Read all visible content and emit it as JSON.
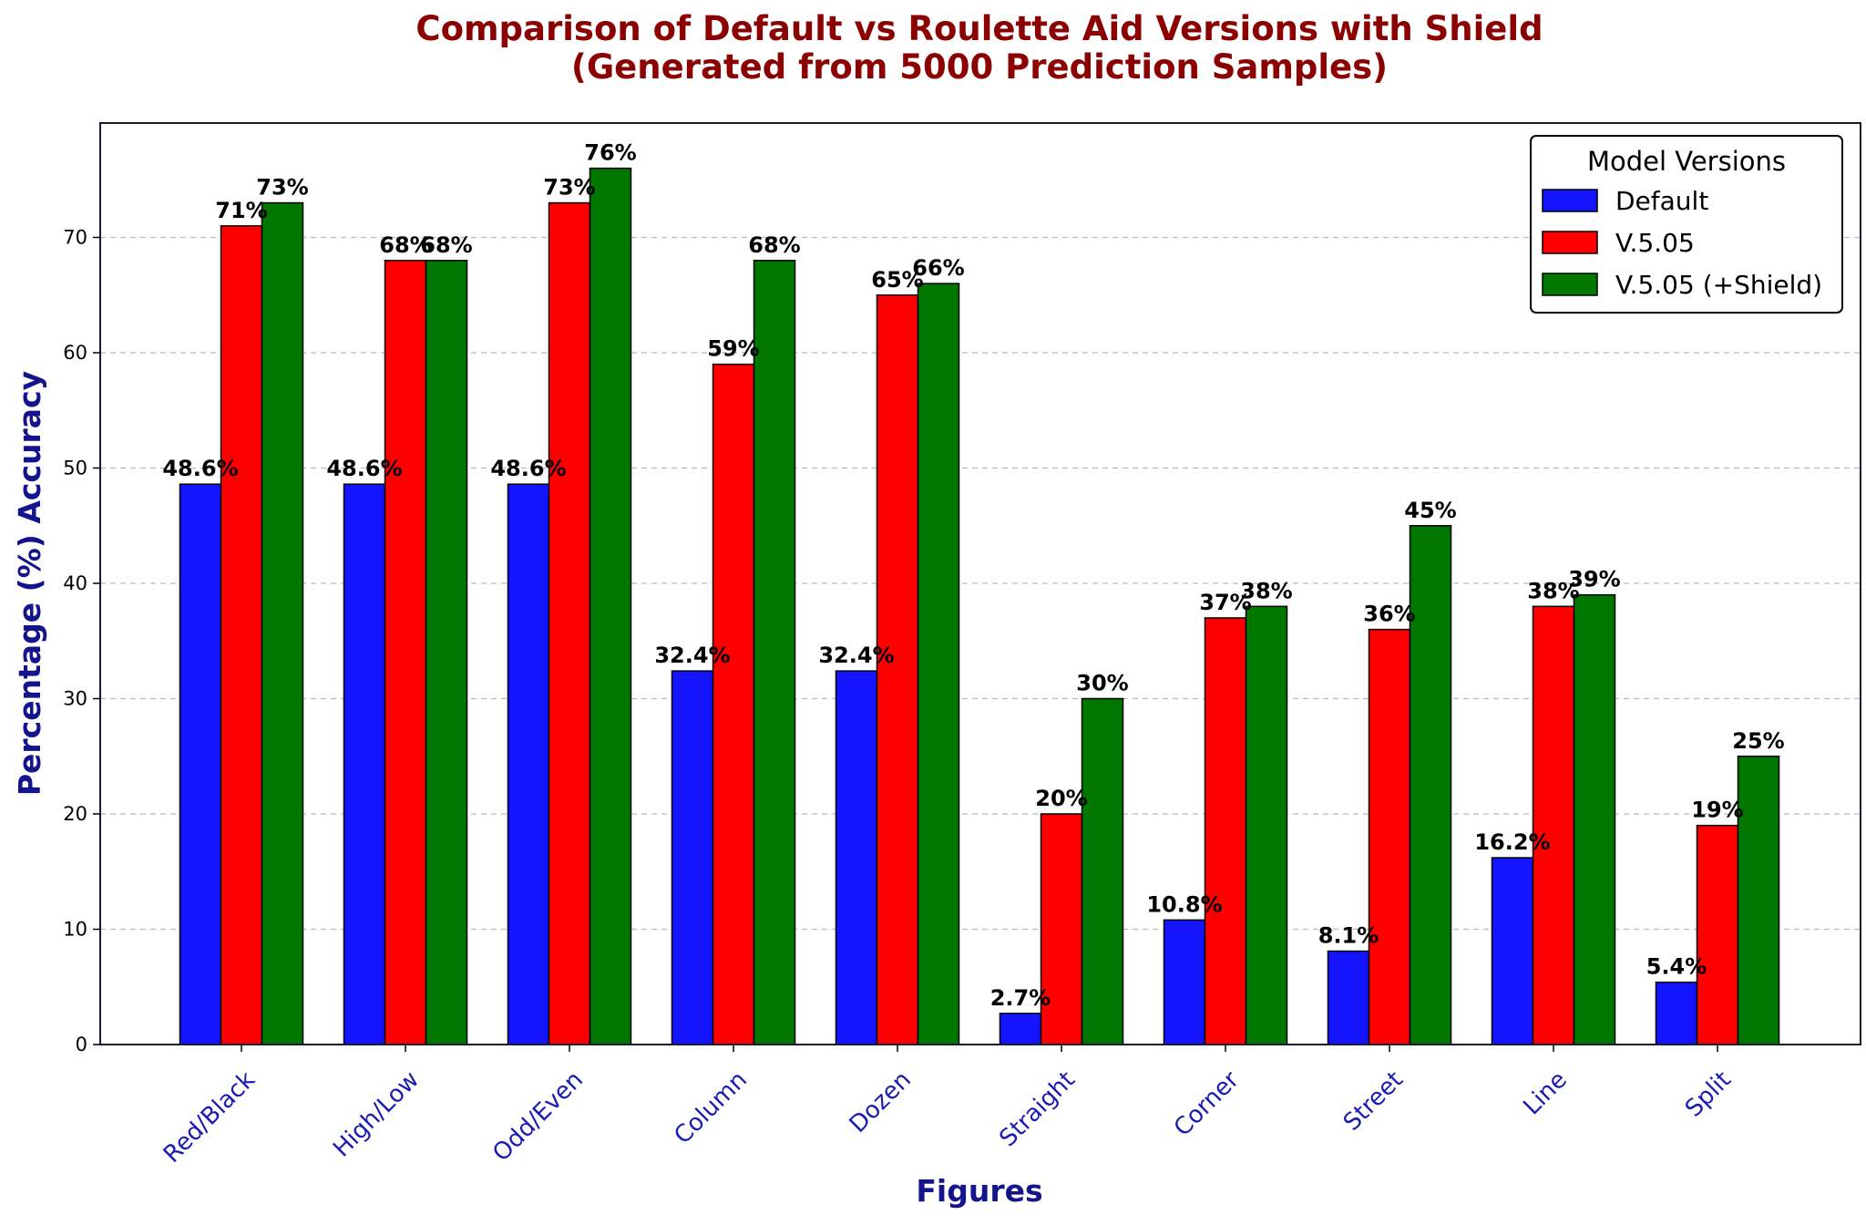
{
  "chart_data": {
    "type": "bar",
    "title": "Comparison of Default vs Roulette Aid Versions with Shield",
    "subtitle": "(Generated from 5000 Prediction Samples)",
    "xlabel": "Figures",
    "ylabel": "Percentage (%) Accuracy",
    "ylim": [
      0,
      79
    ],
    "yticks": [
      0,
      10,
      20,
      30,
      40,
      50,
      60,
      70
    ],
    "grid": true,
    "legend_title": "Model Versions",
    "legend_position": "top-right",
    "categories": [
      "Red/Black",
      "High/Low",
      "Odd/Even",
      "Column",
      "Dozen",
      "Straight",
      "Corner",
      "Street",
      "Line",
      "Split"
    ],
    "series": [
      {
        "name": "Default",
        "color": "#1414ff",
        "values": [
          48.6,
          48.6,
          48.6,
          32.4,
          32.4,
          2.7,
          10.8,
          8.1,
          16.2,
          5.4
        ],
        "labels": [
          "48.6%",
          "48.6%",
          "48.6%",
          "32.4%",
          "32.4%",
          "2.7%",
          "10.8%",
          "8.1%",
          "16.2%",
          "5.4%"
        ]
      },
      {
        "name": "V.5.05",
        "color": "#ff0000",
        "values": [
          71,
          68,
          73,
          59,
          65,
          20,
          37,
          36,
          38,
          19
        ],
        "labels": [
          "71%",
          "68%",
          "73%",
          "59%",
          "65%",
          "20%",
          "37%",
          "36%",
          "38%",
          "19%"
        ]
      },
      {
        "name": "V.5.05 (+Shield)",
        "color": "#007800",
        "values": [
          73,
          68,
          76,
          68,
          66,
          30,
          38,
          45,
          39,
          25
        ],
        "labels": [
          "73%",
          "68%",
          "76%",
          "68%",
          "66%",
          "30%",
          "38%",
          "45%",
          "39%",
          "25%"
        ]
      }
    ]
  }
}
